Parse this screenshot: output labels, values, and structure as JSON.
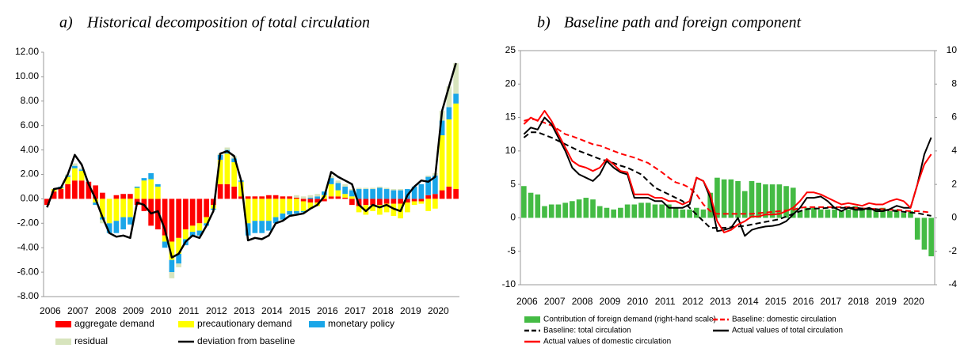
{
  "chart_data": [
    {
      "type": "combo",
      "panel_label": "a)",
      "title": "Historical decomposition of total circulation",
      "stacked": true,
      "frame": false,
      "categories": [
        "2006",
        null,
        null,
        null,
        "2007",
        null,
        null,
        null,
        "2008",
        null,
        null,
        null,
        "2009",
        null,
        null,
        null,
        "2010",
        null,
        null,
        null,
        "2011",
        null,
        null,
        null,
        "2012",
        null,
        null,
        null,
        "2013",
        null,
        null,
        null,
        "2014",
        null,
        null,
        null,
        "2015",
        null,
        null,
        null,
        "2016",
        null,
        null,
        null,
        "2017",
        null,
        null,
        null,
        "2018",
        null,
        null,
        null,
        "2019",
        null,
        null,
        null,
        "2020",
        null,
        null,
        null
      ],
      "ylim": [
        -8,
        12
      ],
      "yticks": [
        {
          "value": 12,
          "label": "12.00"
        },
        {
          "value": 10,
          "label": "10.00"
        },
        {
          "value": 8,
          "label": "8.00"
        },
        {
          "value": 6,
          "label": "6.00"
        },
        {
          "value": 4,
          "label": "4.00"
        },
        {
          "value": 2,
          "label": "2.00"
        },
        {
          "value": 0,
          "label": "0.00"
        },
        {
          "value": -2,
          "label": "-2.00"
        },
        {
          "value": -4,
          "label": "-4.00"
        },
        {
          "value": -6,
          "label": "-6.00"
        },
        {
          "value": -8,
          "label": "-8.00"
        }
      ],
      "series": [
        {
          "name": "aggregate demand",
          "type": "bar",
          "color": "#ff0000",
          "values": [
            -0.5,
            0.6,
            0.8,
            1.2,
            1.5,
            1.5,
            1.4,
            1.1,
            0.5,
            0.0,
            0.3,
            0.4,
            0.4,
            -0.5,
            -1.0,
            -2.2,
            -2.5,
            -3.0,
            -3.5,
            -3.2,
            -2.5,
            -2.2,
            -2.0,
            -1.5,
            -0.5,
            1.2,
            1.2,
            1.0,
            0.2,
            0.2,
            0.2,
            0.2,
            0.3,
            0.3,
            0.2,
            0.2,
            0.1,
            -0.2,
            -0.3,
            -0.3,
            -0.2,
            0.2,
            0.2,
            0.1,
            -0.5,
            -0.6,
            -0.5,
            -0.5,
            -0.5,
            -0.4,
            -0.4,
            -0.4,
            -0.3,
            -0.2,
            -0.2,
            0.3,
            0.4,
            0.7,
            1.0,
            0.8
          ]
        },
        {
          "name": "precautionary demand",
          "type": "bar",
          "color": "#ffff00",
          "values": [
            0,
            0.2,
            0.1,
            0.6,
            1.0,
            0.8,
            0.0,
            -0.3,
            -1.5,
            -2.0,
            -1.8,
            -1.5,
            -1.5,
            0.9,
            1.5,
            1.6,
            1.0,
            -0.5,
            -1.5,
            -1.3,
            -0.8,
            -0.5,
            -0.6,
            -0.5,
            -0.3,
            2.0,
            2.5,
            2.0,
            1.2,
            -2.0,
            -1.8,
            -1.8,
            -1.8,
            -1.5,
            -1.2,
            -1.0,
            -1.0,
            -0.8,
            -0.5,
            -0.3,
            0.3,
            1.0,
            0.5,
            0.3,
            0.2,
            -0.5,
            -0.8,
            -0.5,
            -0.8,
            -0.7,
            -1.0,
            -1.2,
            -0.8,
            -0.3,
            -0.2,
            -1.0,
            -0.8,
            4.5,
            5.5,
            7.0
          ]
        },
        {
          "name": "monetary policy",
          "type": "bar",
          "color": "#1aa6e8",
          "values": [
            0,
            0,
            0.1,
            0.1,
            0.2,
            0.1,
            0,
            -0.2,
            -0.2,
            -0.8,
            -1.0,
            -1.0,
            -0.6,
            0.1,
            0.2,
            0.5,
            0.2,
            -0.5,
            -1.0,
            -0.8,
            -0.5,
            -0.4,
            -0.4,
            -0.2,
            -0.1,
            0.4,
            0.3,
            0.3,
            0.1,
            -1.0,
            -1.0,
            -1.0,
            -0.8,
            -0.5,
            -0.5,
            -0.3,
            -0.2,
            -0.1,
            0.1,
            0.2,
            0.3,
            0.5,
            0.6,
            0.6,
            0.5,
            0.8,
            0.8,
            0.8,
            0.9,
            0.8,
            0.7,
            0.7,
            0.8,
            1.0,
            1.2,
            1.5,
            1.5,
            1.2,
            1.0,
            0.8
          ]
        },
        {
          "name": "residual",
          "type": "bar",
          "color": "#d7e4bd",
          "values": [
            0,
            0,
            0,
            0.1,
            0.2,
            0.1,
            0,
            0,
            -0.3,
            0,
            0,
            0,
            0,
            0,
            0,
            0,
            0,
            0,
            -0.5,
            -0.3,
            0,
            0,
            0,
            0,
            0,
            0.1,
            0.2,
            0.2,
            0,
            0,
            0,
            0,
            0,
            0,
            0,
            0,
            0.2,
            0.2,
            0.2,
            0.2,
            0,
            0.2,
            0.2,
            0.2,
            0.1,
            0.1,
            0.1,
            0.1,
            0.1,
            0.1,
            0.1,
            0.1,
            0,
            0,
            0,
            0.1,
            0.2,
            0.8,
            1.7,
            2.5
          ]
        },
        {
          "name": "deviation from baseline",
          "type": "line",
          "color": "#000000",
          "dash": false,
          "values": [
            -0.7,
            0.8,
            0.9,
            2.0,
            3.6,
            2.8,
            1.2,
            0.0,
            -1.5,
            -2.8,
            -3.1,
            -3.0,
            -3.2,
            -0.3,
            -0.5,
            -1.2,
            -1.0,
            -2.5,
            -4.8,
            -4.5,
            -3.5,
            -3.0,
            -3.2,
            -2.2,
            -1.0,
            3.7,
            3.9,
            3.5,
            1.5,
            -3.4,
            -3.2,
            -3.3,
            -3.0,
            -2.0,
            -1.8,
            -1.4,
            -1.3,
            -1.2,
            -0.8,
            -0.5,
            0.2,
            2.2,
            1.8,
            1.5,
            1.2,
            -0.5,
            -1.0,
            -0.5,
            -0.7,
            -0.5,
            -0.8,
            -1.0,
            0.3,
            1.0,
            1.5,
            1.4,
            1.8,
            7.2,
            9.2,
            11.1
          ]
        }
      ]
    },
    {
      "type": "combo",
      "panel_label": "b)",
      "title": "Baseline path and foreign component",
      "stacked": false,
      "frame": true,
      "categories": [
        "2006",
        null,
        null,
        null,
        "2007",
        null,
        null,
        null,
        "2008",
        null,
        null,
        null,
        "2009",
        null,
        null,
        null,
        "2010",
        null,
        null,
        null,
        "2011",
        null,
        null,
        null,
        "2012",
        null,
        null,
        null,
        "2013",
        null,
        null,
        null,
        "2014",
        null,
        null,
        null,
        "2015",
        null,
        null,
        null,
        "2016",
        null,
        null,
        null,
        "2017",
        null,
        null,
        null,
        "2018",
        null,
        null,
        null,
        "2019",
        null,
        null,
        null,
        "2020",
        null,
        null,
        null
      ],
      "ylim": [
        -10,
        25
      ],
      "yticks": [
        25,
        20,
        15,
        10,
        5,
        0,
        -5,
        -10
      ],
      "y2lim": [
        -4,
        10
      ],
      "y2ticks": [
        10,
        8,
        6,
        4,
        2,
        0,
        -2,
        -4
      ],
      "series": [
        {
          "name": "Contribution of foreign demand (right-hand scale)",
          "type": "bar",
          "axis": "y2",
          "color": "#44bb44",
          "values": [
            1.9,
            1.5,
            1.4,
            0.7,
            0.8,
            0.8,
            0.9,
            1.0,
            1.1,
            1.2,
            1.1,
            0.7,
            0.6,
            0.5,
            0.6,
            0.8,
            0.8,
            0.9,
            0.9,
            0.8,
            0.8,
            0.8,
            0.6,
            0.5,
            0.5,
            0.6,
            0.5,
            1.5,
            2.4,
            2.3,
            2.3,
            2.2,
            1.6,
            2.2,
            2.1,
            2.0,
            2.0,
            2.0,
            1.9,
            1.8,
            0.4,
            0.6,
            0.6,
            0.5,
            0.5,
            0.5,
            0.4,
            0.5,
            0.7,
            0.6,
            0.6,
            0.5,
            0.6,
            0.4,
            0.5,
            0.3,
            0.4,
            -1.3,
            -1.9,
            -2.3
          ]
        },
        {
          "name": "Baseline: domestic circulation",
          "type": "line",
          "color": "#ff0000",
          "dash": true,
          "values": [
            14.5,
            14.8,
            14.6,
            14.2,
            13.8,
            13.2,
            12.5,
            12.2,
            11.8,
            11.4,
            11.0,
            10.8,
            10.4,
            10.0,
            9.6,
            9.3,
            9.0,
            8.6,
            8.2,
            7.5,
            6.8,
            6.0,
            5.3,
            5.0,
            4.5,
            3.5,
            2.0,
            1.0,
            0.6,
            0.6,
            0.6,
            0.6,
            0.6,
            0.6,
            0.7,
            0.8,
            0.9,
            1.0,
            1.1,
            1.2,
            1.5,
            1.6,
            1.6,
            1.6,
            1.6,
            1.6,
            1.6,
            1.6,
            1.5,
            1.4,
            1.4,
            1.3,
            1.3,
            1.2,
            1.2,
            1.1,
            1.0,
            1.0,
            0.9,
            0.8
          ]
        },
        {
          "name": "Baseline: total circulation",
          "type": "line",
          "color": "#000000",
          "dash": true,
          "values": [
            12.0,
            12.8,
            12.8,
            12.4,
            12.0,
            11.5,
            11.0,
            10.5,
            10.0,
            9.6,
            9.2,
            8.8,
            8.5,
            8.2,
            7.8,
            7.5,
            7.0,
            6.5,
            5.5,
            4.5,
            4.0,
            3.5,
            3.0,
            2.5,
            1.5,
            0.5,
            -0.5,
            -1.5,
            -1.5,
            -1.5,
            -1.4,
            -1.3,
            -1.2,
            -1.0,
            -0.8,
            -0.6,
            -0.4,
            -0.2,
            0.2,
            0.6,
            1.0,
            1.3,
            1.4,
            1.4,
            1.5,
            1.5,
            1.5,
            1.5,
            1.5,
            1.4,
            1.3,
            1.3,
            1.2,
            1.1,
            1.0,
            0.9,
            0.8,
            0.7,
            0.5,
            0.3
          ]
        },
        {
          "name": "Actual values of total circulation",
          "type": "line",
          "color": "#000000",
          "dash": false,
          "values": [
            12.5,
            13.5,
            13.2,
            15.0,
            14.0,
            12.0,
            10.0,
            7.5,
            6.5,
            6.0,
            5.5,
            6.5,
            8.5,
            7.5,
            6.8,
            6.5,
            3.0,
            3.0,
            3.0,
            2.5,
            2.5,
            1.5,
            1.5,
            1.5,
            2.0,
            6.0,
            5.5,
            3.0,
            -2.0,
            -1.8,
            -1.5,
            0.0,
            -2.7,
            -1.8,
            -1.5,
            -1.3,
            -1.2,
            -1.0,
            -0.5,
            0.5,
            1.5,
            3.0,
            3.0,
            3.2,
            2.5,
            1.5,
            1.0,
            1.5,
            1.2,
            1.2,
            1.5,
            1.0,
            1.0,
            1.3,
            1.8,
            1.5,
            1.5,
            5.0,
            9.5,
            12.0
          ]
        },
        {
          "name": "Actual values of domestic circulation",
          "type": "line",
          "color": "#ff0000",
          "dash": false,
          "values": [
            14.0,
            15.0,
            14.5,
            16.0,
            14.5,
            12.5,
            10.5,
            8.5,
            7.8,
            7.5,
            7.0,
            7.5,
            8.8,
            8.0,
            7.0,
            6.8,
            3.5,
            3.5,
            3.5,
            3.0,
            3.0,
            2.5,
            2.5,
            2.0,
            2.5,
            6.0,
            5.5,
            3.5,
            -0.5,
            -2.2,
            -1.8,
            -1.0,
            -0.5,
            0.2,
            0.2,
            0.5,
            0.5,
            0.6,
            1.0,
            1.5,
            2.5,
            3.8,
            3.8,
            3.5,
            3.0,
            2.5,
            2.0,
            2.2,
            2.0,
            1.8,
            2.2,
            2.0,
            2.0,
            2.5,
            2.8,
            2.5,
            1.5,
            5.0,
            8.0,
            9.5
          ]
        }
      ]
    }
  ]
}
